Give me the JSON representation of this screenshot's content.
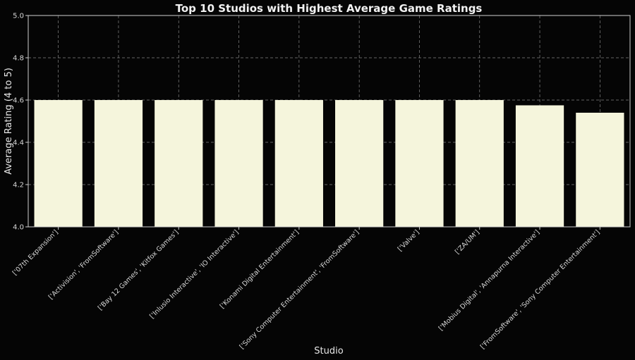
{
  "chart_data": {
    "type": "bar",
    "title": "Top 10 Studios with Highest Average Game Ratings",
    "xlabel": "Studio",
    "ylabel": "Average Rating (4 to 5)",
    "ylim": [
      4.0,
      5.0
    ],
    "yticks": [
      "4.0",
      "4.2",
      "4.4",
      "4.6",
      "4.8",
      "5.0"
    ],
    "grid": true,
    "bar_color": "#f5f5dc",
    "background_color": "#050505",
    "categories": [
      "['07th Expansion']",
      "['Activision', 'FromSoftware']",
      "['Bay 12 Games', 'Kitfox Games']",
      "['Inlusio Interactive', 'IO Interactive']",
      "['Konami Digital Entertainment']",
      "['Sony Computer Entertainment', 'FromSoftware']",
      "['Valve']",
      "['ZA/UM']",
      "['Mobius Digital', 'Annapurna Interactive']",
      "['FromSoftware', 'Sony Computer Entertainment']"
    ],
    "values": [
      4.6,
      4.6,
      4.6,
      4.6,
      4.6,
      4.6,
      4.6,
      4.6,
      4.575,
      4.54
    ]
  }
}
